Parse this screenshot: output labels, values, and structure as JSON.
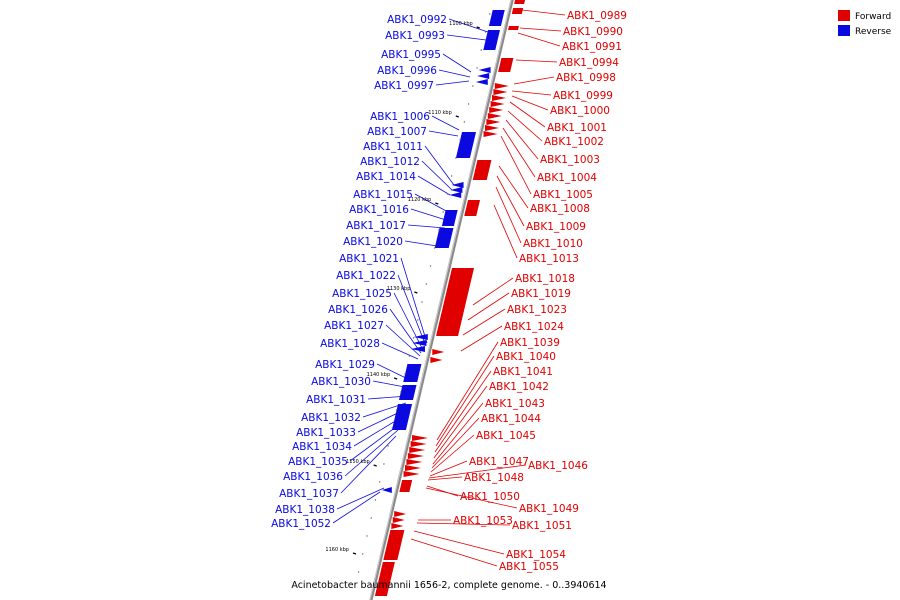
{
  "title": "Acinetobacter baumannii 1656-2, complete genome. - 0..3940614",
  "legend": {
    "forward": {
      "label": "Forward",
      "color": "#e00000"
    },
    "reverse": {
      "label": "Reverse",
      "color": "#0a0ae0"
    }
  },
  "axis_ticks": [
    "1100 kbp",
    "1110 kbp",
    "1120 kbp",
    "1130 kbp",
    "1140 kbp",
    "1150 kbp",
    "1160 kbp"
  ],
  "forward_genes": [
    "ABK1_0989",
    "ABK1_0990",
    "ABK1_0991",
    "ABK1_0994",
    "ABK1_0998",
    "ABK1_0999",
    "ABK1_1000",
    "ABK1_1001",
    "ABK1_1002",
    "ABK1_1003",
    "ABK1_1004",
    "ABK1_1005",
    "ABK1_1008",
    "ABK1_1009",
    "ABK1_1010",
    "ABK1_1013",
    "ABK1_1018",
    "ABK1_1019",
    "ABK1_1023",
    "ABK1_1024",
    "ABK1_1039",
    "ABK1_1040",
    "ABK1_1041",
    "ABK1_1042",
    "ABK1_1043",
    "ABK1_1044",
    "ABK1_1045",
    "ABK1_1047",
    "ABK1_1046",
    "ABK1_1048",
    "ABK1_1050",
    "ABK1_1049",
    "ABK1_1053",
    "ABK1_1051",
    "ABK1_1054",
    "ABK1_1055"
  ],
  "reverse_genes": [
    "ABK1_0992",
    "ABK1_0993",
    "ABK1_0995",
    "ABK1_0996",
    "ABK1_0997",
    "ABK1_1006",
    "ABK1_1007",
    "ABK1_1011",
    "ABK1_1012",
    "ABK1_1014",
    "ABK1_1015",
    "ABK1_1016",
    "ABK1_1017",
    "ABK1_1020",
    "ABK1_1021",
    "ABK1_1022",
    "ABK1_1025",
    "ABK1_1026",
    "ABK1_1027",
    "ABK1_1028",
    "ABK1_1029",
    "ABK1_1030",
    "ABK1_1031",
    "ABK1_1032",
    "ABK1_1033",
    "ABK1_1034",
    "ABK1_1035",
    "ABK1_1036",
    "ABK1_1037",
    "ABK1_1038",
    "ABK1_1052"
  ]
}
